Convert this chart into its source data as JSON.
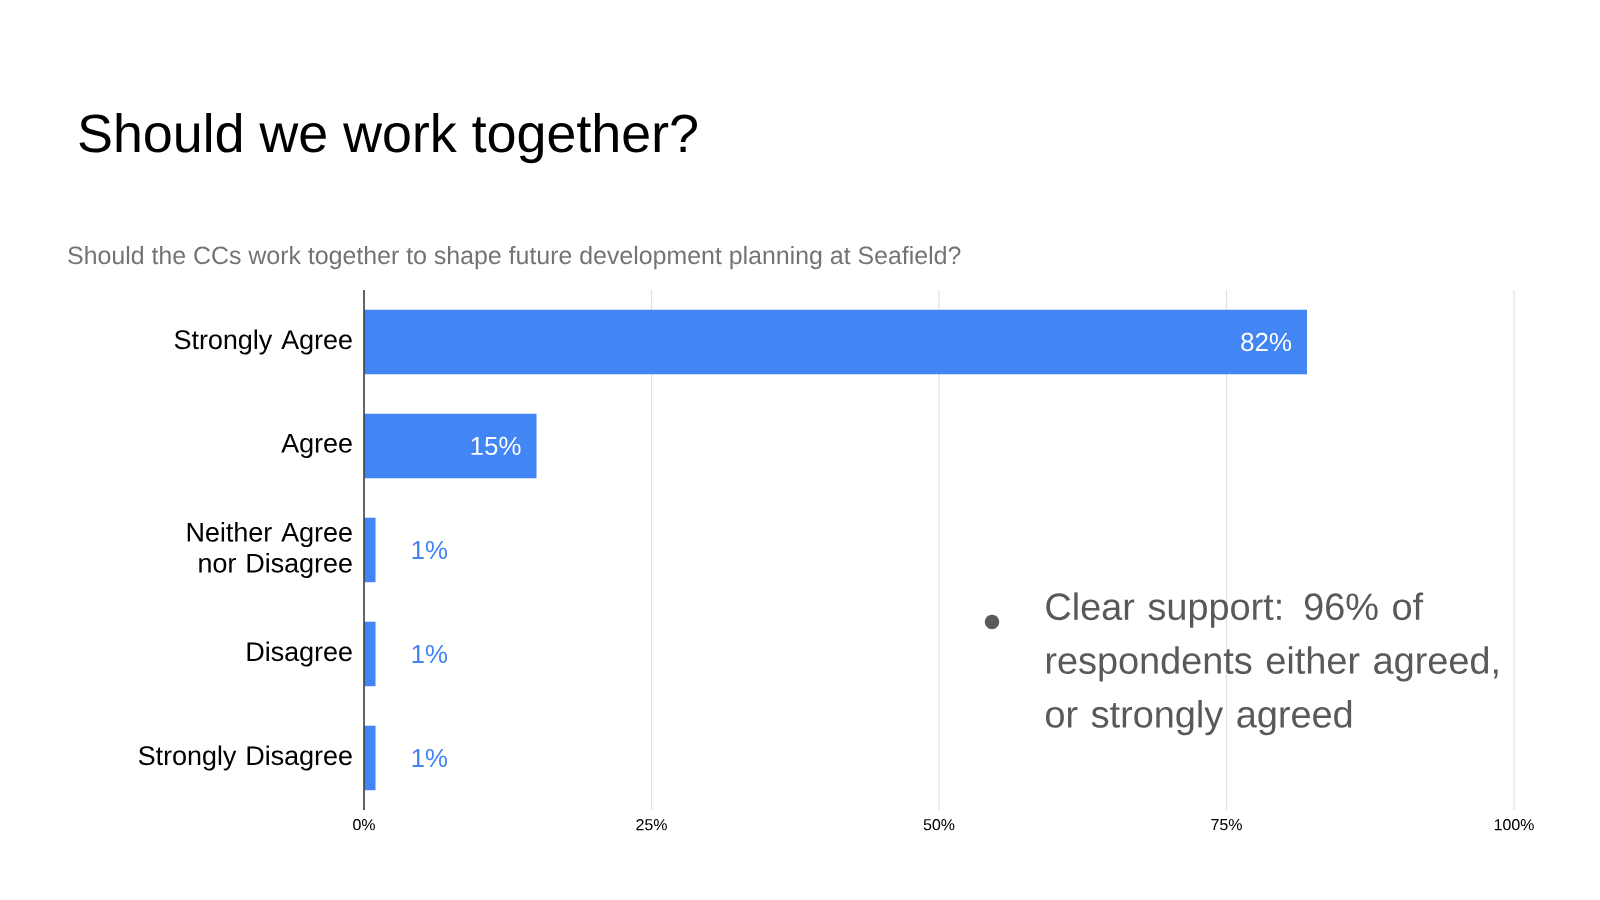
{
  "chart_data": {
    "type": "bar",
    "orientation": "horizontal",
    "title": "Should we work together?",
    "subtitle": "Should the CCs work together to shape future development planning at Seafield?",
    "categories": [
      "Strongly Agree",
      "Agree",
      "Neither Agree nor Disagree",
      "Disagree",
      "Strongly Disagree"
    ],
    "values": [
      82,
      15,
      1,
      1,
      1
    ],
    "value_labels": [
      "82%",
      "15%",
      "1%",
      "1%",
      "1%"
    ],
    "color": "#4285f4",
    "xlim": [
      0,
      100
    ],
    "xticks": [
      {
        "value": 0,
        "label": "0%"
      },
      {
        "value": 25,
        "label": "25%"
      },
      {
        "value": 50,
        "label": "50%"
      },
      {
        "value": 75,
        "label": "75%"
      },
      {
        "value": 100,
        "label": "100%"
      }
    ],
    "grid": "x",
    "annotations": [
      "Clear support: 96% of respondents either agreed, or strongly agreed"
    ]
  }
}
